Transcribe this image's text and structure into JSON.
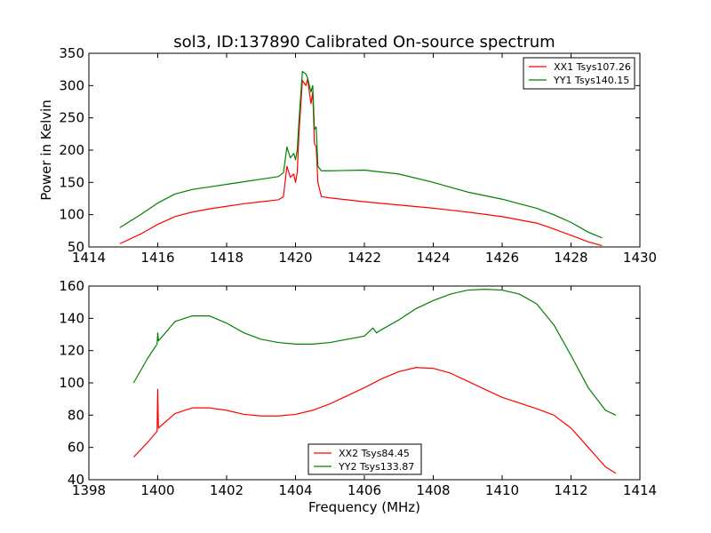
{
  "chart_data": [
    {
      "type": "line",
      "title": "sol3, ID:137890 Calibrated On-source spectrum",
      "xlabel": "",
      "ylabel": "Power in Kelvin",
      "xlim": [
        1414,
        1430
      ],
      "ylim": [
        50,
        350
      ],
      "xticks": [
        1414,
        1416,
        1418,
        1420,
        1422,
        1424,
        1426,
        1428,
        1430
      ],
      "yticks": [
        50,
        100,
        150,
        200,
        250,
        300,
        350
      ],
      "grid": false,
      "legend_position": "top-right",
      "series": [
        {
          "name": "XX1 Tsys107.26",
          "color": "#ff0000",
          "x": [
            1414.9,
            1415.5,
            1416,
            1416.5,
            1417,
            1417.5,
            1418,
            1418.5,
            1419,
            1419.5,
            1419.65,
            1419.75,
            1419.85,
            1419.95,
            1420.0,
            1420.05,
            1420.1,
            1420.2,
            1420.3,
            1420.35,
            1420.45,
            1420.5,
            1420.55,
            1420.6,
            1420.65,
            1420.75,
            1421,
            1422,
            1423,
            1424,
            1425,
            1426,
            1427,
            1427.5,
            1428,
            1428.5,
            1428.9
          ],
          "y": [
            55,
            70,
            85,
            97,
            104,
            109,
            113,
            117,
            120,
            123,
            128,
            175,
            158,
            163,
            150,
            165,
            225,
            308,
            300,
            310,
            272,
            290,
            210,
            205,
            150,
            128,
            126,
            120,
            115,
            110,
            104,
            97,
            87,
            78,
            68,
            58,
            52
          ]
        },
        {
          "name": "YY1 Tsys140.15",
          "color": "#008000",
          "x": [
            1414.9,
            1415.5,
            1416,
            1416.5,
            1417,
            1417.5,
            1418,
            1418.5,
            1419,
            1419.5,
            1419.65,
            1419.75,
            1419.85,
            1419.95,
            1420.0,
            1420.05,
            1420.1,
            1420.2,
            1420.3,
            1420.35,
            1420.45,
            1420.5,
            1420.55,
            1420.6,
            1420.65,
            1420.75,
            1421,
            1422,
            1423,
            1424,
            1425,
            1426,
            1427,
            1427.5,
            1428,
            1428.5,
            1428.9
          ],
          "y": [
            80,
            100,
            118,
            132,
            139,
            143,
            147,
            151,
            155,
            159,
            165,
            205,
            188,
            195,
            185,
            200,
            245,
            322,
            318,
            312,
            290,
            300,
            232,
            236,
            175,
            168,
            168,
            169,
            163,
            150,
            135,
            124,
            110,
            100,
            88,
            73,
            64
          ]
        }
      ]
    },
    {
      "type": "line",
      "title": "",
      "xlabel": "Frequency (MHz)",
      "ylabel": "",
      "xlim": [
        1398,
        1414
      ],
      "ylim": [
        40,
        160
      ],
      "xticks": [
        1398,
        1400,
        1402,
        1404,
        1406,
        1408,
        1410,
        1412,
        1414
      ],
      "yticks": [
        40,
        60,
        80,
        100,
        120,
        140,
        160
      ],
      "grid": false,
      "legend_position": "bottom-center",
      "series": [
        {
          "name": "XX2 Tsys84.45",
          "color": "#ff0000",
          "x": [
            1399.3,
            1399.7,
            1399.98,
            1400.0,
            1400.02,
            1400.5,
            1401,
            1401.5,
            1402,
            1402.5,
            1403,
            1403.5,
            1404,
            1404.5,
            1405,
            1405.5,
            1406,
            1406.5,
            1407,
            1407.5,
            1408,
            1408.5,
            1409,
            1409.5,
            1410,
            1410.5,
            1411,
            1411.5,
            1412,
            1412.5,
            1413,
            1413.3
          ],
          "y": [
            54,
            63,
            70,
            96,
            72,
            81,
            84.5,
            84.5,
            83,
            80.5,
            79.5,
            79.5,
            80.5,
            83,
            87,
            92,
            97,
            102.5,
            107,
            109.5,
            109,
            106,
            101,
            96,
            91,
            87.5,
            84,
            80,
            72,
            60,
            48,
            44
          ]
        },
        {
          "name": "YY2 Tsys133.87",
          "color": "#008000",
          "x": [
            1399.3,
            1399.7,
            1399.98,
            1400.0,
            1400.02,
            1400.5,
            1401,
            1401.5,
            1402,
            1402.5,
            1403,
            1403.5,
            1404,
            1404.5,
            1405,
            1405.5,
            1406,
            1406.25,
            1406.35,
            1406.5,
            1407,
            1407.5,
            1408,
            1408.5,
            1409,
            1409.5,
            1410,
            1410.5,
            1411,
            1411.5,
            1412,
            1412.5,
            1413,
            1413.3
          ],
          "y": [
            100,
            115,
            124,
            131,
            126,
            138,
            141.5,
            141.5,
            137,
            131,
            127,
            125,
            124,
            124,
            125,
            127,
            129,
            134,
            131,
            133,
            139,
            146,
            151,
            155,
            157.5,
            158,
            157.5,
            155,
            149,
            136,
            117,
            97,
            83,
            80
          ]
        }
      ]
    }
  ]
}
